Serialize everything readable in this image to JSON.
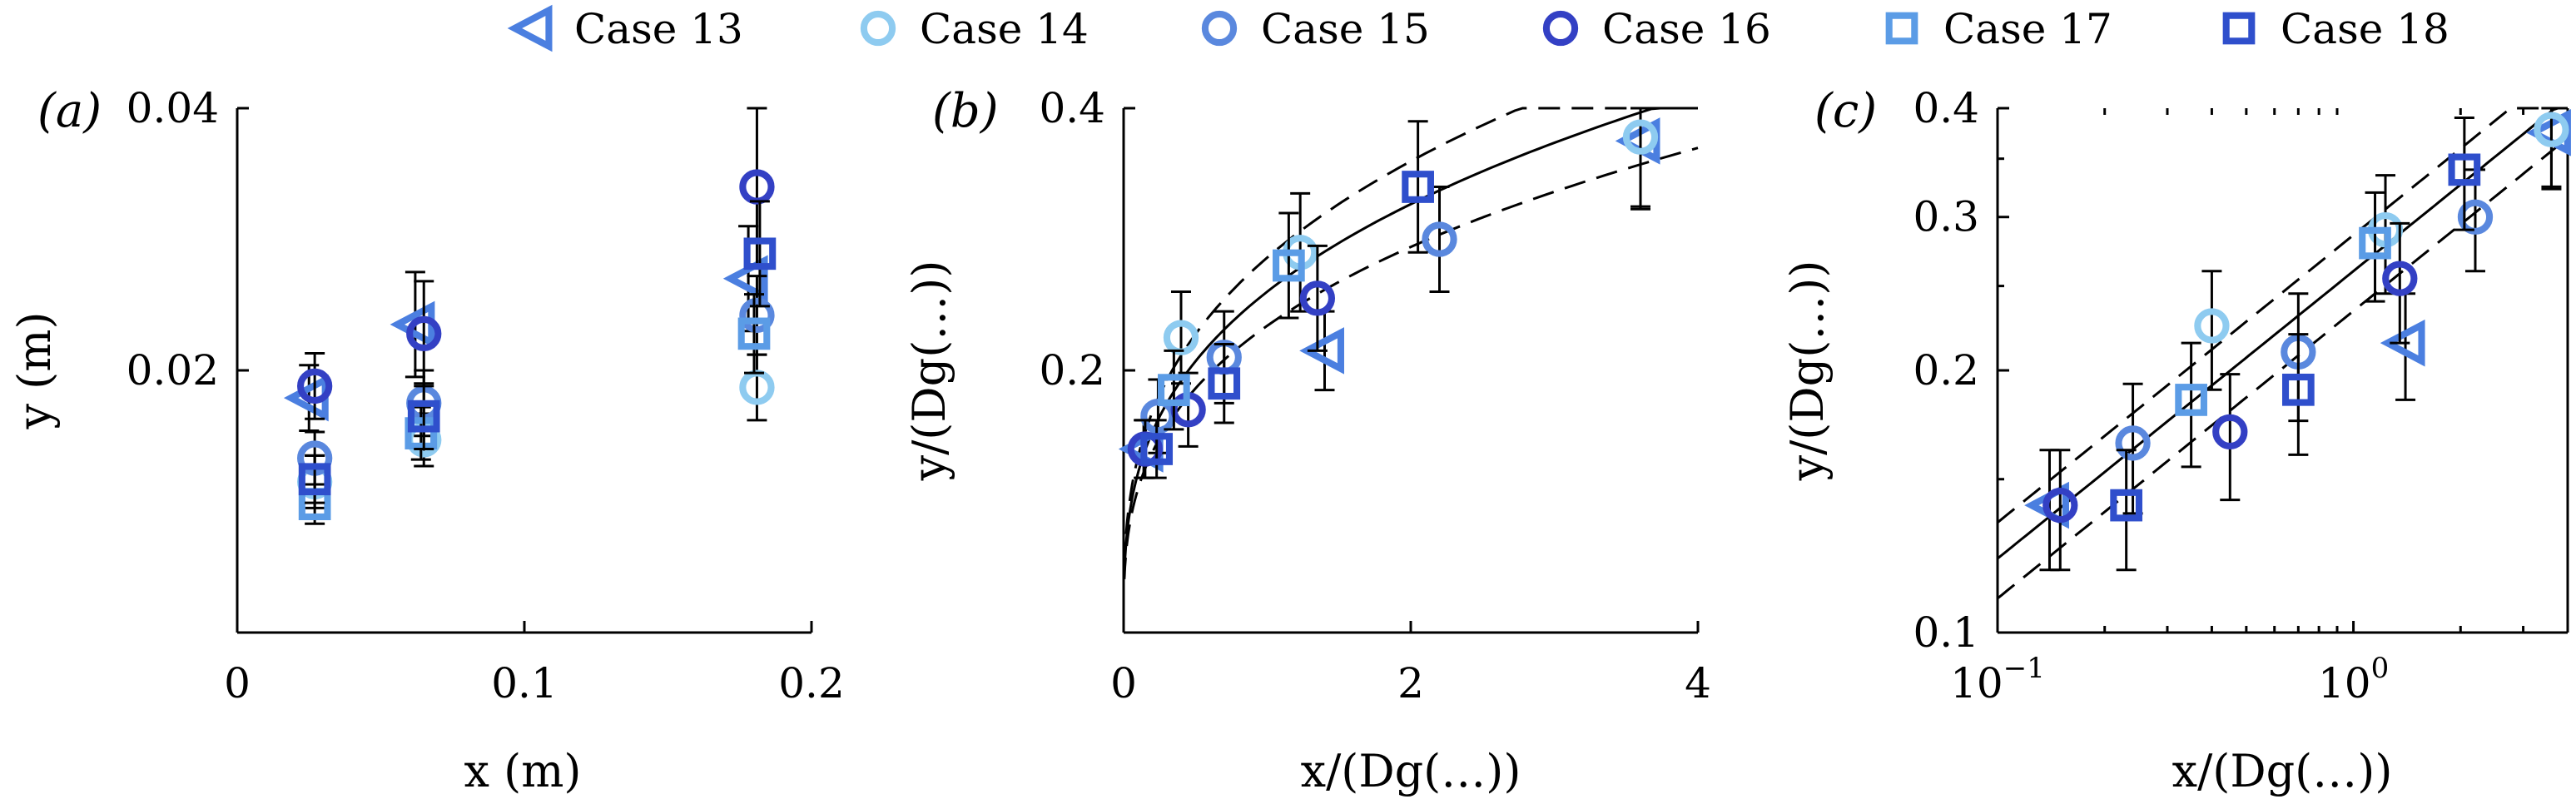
{
  "chart_data": [
    {
      "panel_label": "(a)",
      "type": "scatter",
      "xlabel": "x (m)",
      "ylabel": "y (m)",
      "xlim": [
        0,
        0.2
      ],
      "ylim": [
        0,
        0.04
      ],
      "x_ticks": [
        0,
        0.1,
        0.2
      ],
      "x_tick_labels": [
        "0",
        "0.1",
        "0.2"
      ],
      "y_ticks": [
        0.02,
        0.04
      ],
      "y_tick_labels": [
        "0.02",
        "0.04"
      ],
      "series": [
        {
          "name": "Case 13",
          "points": [
            {
              "x": 0.025,
              "y": 0.0179,
              "err": 0.0025
            },
            {
              "x": 0.062,
              "y": 0.0235,
              "err": 0.004
            },
            {
              "x": 0.178,
              "y": 0.027,
              "err": 0.004
            }
          ]
        },
        {
          "name": "Case 14",
          "points": [
            {
              "x": 0.027,
              "y": 0.0115,
              "err": 0.002
            },
            {
              "x": 0.065,
              "y": 0.0147,
              "err": 0.002
            },
            {
              "x": 0.181,
              "y": 0.0187,
              "err": 0.0025
            }
          ]
        },
        {
          "name": "Case 15",
          "points": [
            {
              "x": 0.027,
              "y": 0.0133,
              "err": 0.002
            },
            {
              "x": 0.065,
              "y": 0.0175,
              "err": 0.0025
            },
            {
              "x": 0.181,
              "y": 0.0242,
              "err": 0.003
            }
          ]
        },
        {
          "name": "Case 16",
          "points": [
            {
              "x": 0.027,
              "y": 0.0188,
              "err": 0.0025
            },
            {
              "x": 0.065,
              "y": 0.0228,
              "err": 0.004
            },
            {
              "x": 0.181,
              "y": 0.034,
              "err": 0.006
            }
          ]
        },
        {
          "name": "Case 17",
          "points": [
            {
              "x": 0.027,
              "y": 0.0098,
              "err": 0.0015
            },
            {
              "x": 0.064,
              "y": 0.0152,
              "err": 0.002
            },
            {
              "x": 0.18,
              "y": 0.0228,
              "err": 0.003
            }
          ]
        },
        {
          "name": "Case 18",
          "points": [
            {
              "x": 0.027,
              "y": 0.0117,
              "err": 0.0018
            },
            {
              "x": 0.065,
              "y": 0.0165,
              "err": 0.0025
            },
            {
              "x": 0.182,
              "y": 0.0289,
              "err": 0.004
            }
          ]
        }
      ]
    },
    {
      "panel_label": "(b)",
      "type": "scatter",
      "xlabel": "x/(Dg(…))",
      "ylabel": "y/(Dg(…))",
      "xlim": [
        0,
        4
      ],
      "ylim": [
        0,
        0.4
      ],
      "x_ticks": [
        0,
        2,
        4
      ],
      "x_tick_labels": [
        "0",
        "2",
        "4"
      ],
      "y_ticks": [
        0.2,
        0.4
      ],
      "y_tick_labels": [
        "0.2",
        "0.4"
      ],
      "fit": {
        "form": "y = a*x^b",
        "a": 0.26,
        "b": 0.33,
        "band_factor_upper": 1.1,
        "band_factor_lower": 0.9
      },
      "series": [
        {
          "name": "Case 13",
          "points": [
            {
              "x": 0.14,
              "y": 0.14,
              "err": 0.022
            },
            {
              "x": 1.4,
              "y": 0.215,
              "err": 0.03
            },
            {
              "x": 3.6,
              "y": 0.375,
              "err": 0.05
            }
          ]
        },
        {
          "name": "Case 14",
          "points": [
            {
              "x": 0.4,
              "y": 0.225,
              "err": 0.035
            },
            {
              "x": 1.23,
              "y": 0.29,
              "err": 0.045
            },
            {
              "x": 3.6,
              "y": 0.378,
              "err": 0.055
            }
          ]
        },
        {
          "name": "Case 15",
          "points": [
            {
              "x": 0.24,
              "y": 0.165,
              "err": 0.028
            },
            {
              "x": 0.7,
              "y": 0.21,
              "err": 0.035
            },
            {
              "x": 2.2,
              "y": 0.3,
              "err": 0.04
            }
          ]
        },
        {
          "name": "Case 16",
          "points": [
            {
              "x": 0.15,
              "y": 0.14,
              "err": 0.022
            },
            {
              "x": 0.45,
              "y": 0.17,
              "err": 0.028
            },
            {
              "x": 1.35,
              "y": 0.255,
              "err": 0.04
            }
          ]
        },
        {
          "name": "Case 17",
          "points": [
            {
              "x": 0.35,
              "y": 0.185,
              "err": 0.03
            },
            {
              "x": 1.15,
              "y": 0.28,
              "err": 0.04
            }
          ]
        },
        {
          "name": "Case 18",
          "points": [
            {
              "x": 0.23,
              "y": 0.14,
              "err": 0.022
            },
            {
              "x": 0.7,
              "y": 0.19,
              "err": 0.03
            },
            {
              "x": 2.05,
              "y": 0.34,
              "err": 0.05
            }
          ]
        }
      ]
    },
    {
      "panel_label": "(c)",
      "type": "scatter",
      "scale": "log-log",
      "xlabel": "x/(Dg(…))",
      "ylabel": "y/(Dg(…))",
      "xlim": [
        0.1,
        4
      ],
      "ylim": [
        0.1,
        0.4
      ],
      "x_ticks": [
        0.1,
        1
      ],
      "x_tick_labels": [
        "10",
        "10"
      ],
      "x_tick_exponents": [
        "−1",
        "0"
      ],
      "y_ticks": [
        0.1,
        0.2,
        0.3,
        0.4
      ],
      "y_tick_labels": [
        "0.1",
        "0.2",
        "0.3",
        "0.4"
      ],
      "fit": {
        "form": "y = a*x^b",
        "a": 0.26,
        "b": 0.33,
        "band_factor_upper": 1.1,
        "band_factor_lower": 0.9
      },
      "series": [
        {
          "name": "Case 13",
          "points": [
            {
              "x": 0.14,
              "y": 0.14,
              "err": 0.022
            },
            {
              "x": 1.4,
              "y": 0.215,
              "err": 0.03
            },
            {
              "x": 3.6,
              "y": 0.375,
              "err": 0.05
            }
          ]
        },
        {
          "name": "Case 14",
          "points": [
            {
              "x": 0.4,
              "y": 0.225,
              "err": 0.035
            },
            {
              "x": 1.23,
              "y": 0.29,
              "err": 0.045
            },
            {
              "x": 3.6,
              "y": 0.378,
              "err": 0.055
            }
          ]
        },
        {
          "name": "Case 15",
          "points": [
            {
              "x": 0.24,
              "y": 0.165,
              "err": 0.028
            },
            {
              "x": 0.7,
              "y": 0.21,
              "err": 0.035
            },
            {
              "x": 2.2,
              "y": 0.3,
              "err": 0.04
            }
          ]
        },
        {
          "name": "Case 16",
          "points": [
            {
              "x": 0.15,
              "y": 0.14,
              "err": 0.022
            },
            {
              "x": 0.45,
              "y": 0.17,
              "err": 0.028
            },
            {
              "x": 1.35,
              "y": 0.255,
              "err": 0.04
            }
          ]
        },
        {
          "name": "Case 17",
          "points": [
            {
              "x": 0.35,
              "y": 0.185,
              "err": 0.03
            },
            {
              "x": 1.15,
              "y": 0.28,
              "err": 0.04
            }
          ]
        },
        {
          "name": "Case 18",
          "points": [
            {
              "x": 0.23,
              "y": 0.14,
              "err": 0.022
            },
            {
              "x": 0.7,
              "y": 0.19,
              "err": 0.03
            },
            {
              "x": 2.05,
              "y": 0.34,
              "err": 0.05
            }
          ]
        }
      ]
    }
  ],
  "legend": {
    "placement": "top-center",
    "entries": [
      {
        "name": "Case 13",
        "marker": "triangle-left-icon",
        "color": "#4b7fe0"
      },
      {
        "name": "Case 14",
        "marker": "circle-icon",
        "color": "#8ecbf0"
      },
      {
        "name": "Case 15",
        "marker": "circle-icon",
        "color": "#5a88de"
      },
      {
        "name": "Case 16",
        "marker": "circle-icon",
        "color": "#3340c4"
      },
      {
        "name": "Case 17",
        "marker": "square-icon",
        "color": "#5b9ce6"
      },
      {
        "name": "Case 18",
        "marker": "square-icon",
        "color": "#2f4fcc"
      }
    ]
  }
}
